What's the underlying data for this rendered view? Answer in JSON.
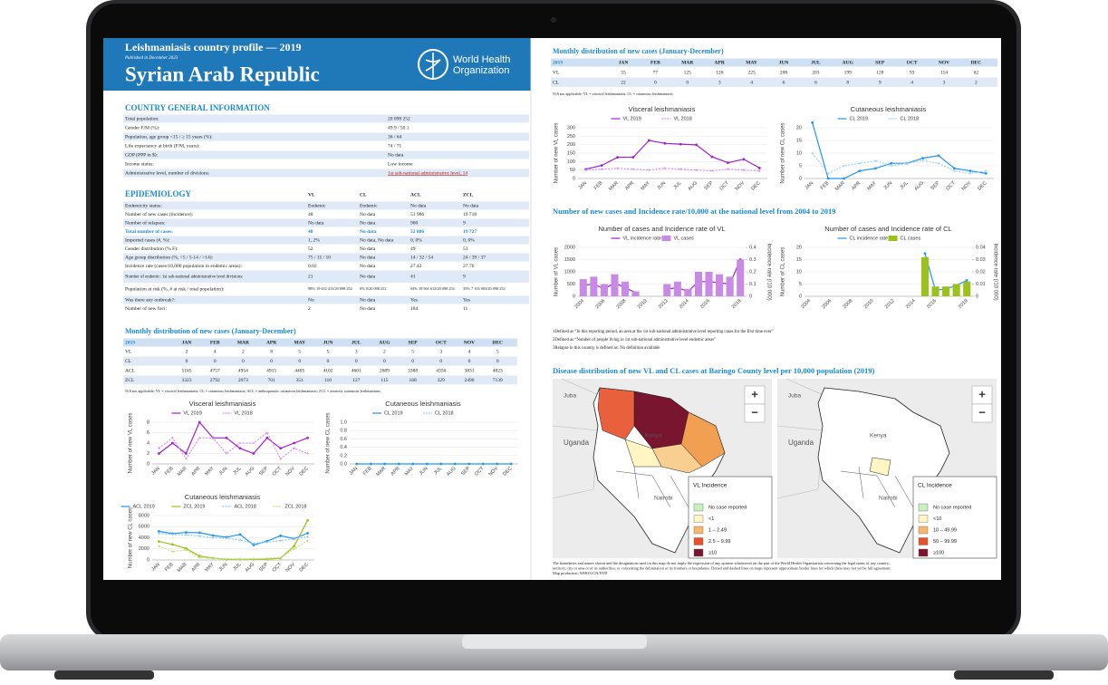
{
  "header": {
    "title": "Leishmaniasis country profile —  2019",
    "published": "Published in December 2023",
    "country": "Syrian Arab Republic",
    "org": [
      "World Health",
      "Organization"
    ]
  },
  "general": {
    "heading": "COUNTRY GENERAL INFORMATION",
    "rows": [
      [
        "Total population:",
        "20 098 252"
      ],
      [
        "Gender F/M (%):",
        "49.9 / 50.1"
      ],
      [
        "Population, age group <15 / ≥ 15 years (%):",
        "36 / 64"
      ],
      [
        "Life expectancy at birth (F/M, years):",
        "74 / 71"
      ],
      [
        "GDP (PPP in $):",
        "No data"
      ],
      [
        "Income status:",
        "Low income"
      ],
      [
        "Administrative level, number of divisions:",
        "1st sub-national administrative level, 14"
      ]
    ]
  },
  "epidemiology": {
    "heading": "EPIDEMIOLOGY",
    "columns": [
      "VL",
      "CL",
      "ACL",
      "ZCL"
    ],
    "rows": [
      [
        "Endemicity status:",
        "Endemic",
        "Endemic",
        "No data",
        "No data"
      ],
      [
        "Number of new cases (incidence):",
        "48",
        "No data",
        "51 986",
        "19 718"
      ],
      [
        "Number of relapses:",
        "No data",
        "No data",
        "900",
        "9"
      ],
      [
        "Total number of cases:",
        "48",
        "No data",
        "52 886",
        "19 727"
      ],
      [
        "Imported cases (#, %):",
        "1, 2%",
        "No data, No data",
        "0, 0%",
        "0, 0%"
      ],
      [
        "Gender distribution (% F):",
        "52",
        "No data",
        "49",
        "53"
      ],
      [
        "Age group distribution (%, <5 / 5-14 / >14):",
        "75 / 15 / 10",
        "No data",
        "14 / 32 / 54",
        "24 / 39 / 37"
      ],
      [
        "Incidence rate (cases/10,000 population in endemic areas):",
        "0.02",
        "No data",
        "27.42",
        "27.76"
      ],
      [
        "Number of endemic: 1st sub-national administrative level divisions:",
        "21",
        "No data",
        "41",
        "9"
      ],
      [
        "Population at risk (%, # at risk / total population):",
        "98% 19 652 413/20 098 252",
        "0% 0/20 098 252",
        "94% 18 961 612/20 098 252",
        "35% 7 103 903/20 098 252"
      ],
      [
        "Was there any outbreak?:",
        "No",
        "No data",
        "Yes",
        "Yes"
      ],
      [
        "Number of new foci:",
        "2",
        "No data",
        "184",
        "11"
      ]
    ]
  },
  "monthly_left": {
    "heading": "Monthly distribution of new cases (January-December)",
    "year": "2019",
    "months": [
      "JAN",
      "FEB",
      "MAR",
      "APR",
      "MAY",
      "JUN",
      "JUL",
      "AUG",
      "SEP",
      "OCT",
      "NOV",
      "DEC"
    ],
    "rows": [
      [
        "VL",
        2,
        4,
        2,
        8,
        5,
        5,
        3,
        2,
        5,
        3,
        4,
        5
      ],
      [
        "CL",
        0,
        0,
        0,
        0,
        0,
        0,
        0,
        0,
        0,
        0,
        0,
        0
      ],
      [
        "ACL",
        5165,
        4757,
        4954,
        4915,
        4405,
        4102,
        4601,
        2689,
        3388,
        4356,
        3831,
        4823
      ],
      [
        "ZCL",
        3323,
        2792,
        2073,
        701,
        351,
        110,
        127,
        115,
        168,
        329,
        2490,
        7139
      ]
    ],
    "note": "N/A not applicable; VL = visceral leishmaniasis; CL = cutaneous leishmaniasis; ACL = anthroponotic cutaneous leishmaniasis; ZCL = zoonotic cutaneous leishmaniasis"
  },
  "monthly_right": {
    "heading": "Monthly distribution of new cases (January-December)",
    "year": "2019",
    "months": [
      "JAN",
      "FEB",
      "MAR",
      "APR",
      "MAY",
      "JUN",
      "JUL",
      "AUG",
      "SEP",
      "OCT",
      "NOV",
      "DEC"
    ],
    "rows": [
      [
        "VL",
        55,
        77,
        125,
        126,
        225,
        208,
        203,
        199,
        128,
        93,
        114,
        62
      ],
      [
        "CL",
        22,
        0,
        0,
        3,
        4,
        6,
        6,
        8,
        9,
        4,
        3,
        2
      ]
    ],
    "note": "N/A not applicable; VL = visceral leishmaniasis; CL = cutaneous leishmaniasis"
  },
  "chart_data": [
    {
      "type": "line",
      "title": "Visceral leishmaniasis",
      "ylabel": "Number of new VL cases",
      "categories": [
        "JAN",
        "FEB",
        "MAR",
        "APR",
        "MAY",
        "JUN",
        "JUL",
        "AUG",
        "SEP",
        "OCT",
        "NOV",
        "DEC"
      ],
      "ylim": [
        0,
        8
      ],
      "yticks": [
        0,
        2,
        4,
        6,
        8
      ],
      "grid": true,
      "series": [
        {
          "name": "VL 2019",
          "color": "#a020d0",
          "values": [
            2,
            4,
            2,
            8,
            5,
            5,
            3,
            2,
            5,
            3,
            4,
            5
          ]
        },
        {
          "name": "VL 2018",
          "color": "#d890f0",
          "dashed": true,
          "values": [
            3,
            5,
            1,
            5,
            5,
            2,
            4,
            4,
            6,
            1,
            3,
            2
          ]
        }
      ]
    },
    {
      "type": "line",
      "title": "Cutaneous leishmaniasis",
      "ylabel": "Number of new CL cases",
      "categories": [
        "JAN",
        "FEB",
        "MAR",
        "APR",
        "MAY",
        "JUN",
        "JUL",
        "AUG",
        "SEP",
        "OCT",
        "NOV",
        "DEC"
      ],
      "ylim": [
        0,
        1
      ],
      "yticks": [
        {
          "value": 0,
          "label": "0.0"
        },
        {
          "value": 0.2,
          "label": "0.2"
        },
        {
          "value": 0.4,
          "label": "0.4"
        },
        {
          "value": 0.6,
          "label": "0.6"
        },
        {
          "value": 0.8,
          "label": "0.8"
        },
        {
          "value": 1,
          "label": "1.0"
        }
      ],
      "grid": true,
      "series": [
        {
          "name": "CL 2019",
          "color": "#2196f3",
          "values": [
            0,
            0,
            0,
            0,
            0,
            0,
            0,
            0,
            0,
            0,
            0,
            0
          ]
        },
        {
          "name": "CL 2018",
          "color": "#9fd3f8",
          "dashed": true,
          "values": [
            null,
            null,
            null,
            null,
            null,
            null,
            null,
            null,
            null,
            null,
            null,
            null
          ]
        }
      ]
    },
    {
      "type": "line",
      "title": "Cutaneous leishmaniasis",
      "ylabel": "Number of new CL cases",
      "categories": [
        "JAN",
        "FEB",
        "MAR",
        "APR",
        "MAY",
        "JUN",
        "JUL",
        "AUG",
        "SEP",
        "OCT",
        "NOV",
        "DEC"
      ],
      "ylim": [
        0,
        8000
      ],
      "yticks": [
        0,
        2000,
        4000,
        6000,
        8000
      ],
      "grid": true,
      "series": [
        {
          "name": "ACL 2019",
          "color": "#2196f3",
          "values": [
            5165,
            4757,
            4954,
            4915,
            4405,
            4102,
            4601,
            2689,
            3388,
            4356,
            3831,
            4823
          ]
        },
        {
          "name": "ZCL 2019",
          "color": "#9ac21a",
          "values": [
            3323,
            2792,
            2073,
            701,
            351,
            110,
            127,
            115,
            168,
            329,
            2490,
            7139
          ]
        },
        {
          "name": "ACL 2018",
          "color": "#8cc8f5",
          "dashed": true,
          "values": [
            4800,
            4600,
            4500,
            4300,
            4000,
            3900,
            3600,
            3000,
            3200,
            3500,
            3800,
            4200
          ]
        },
        {
          "name": "ZCL 2018",
          "color": "#c8e080",
          "dashed": true,
          "values": [
            2500,
            1500,
            1800,
            400,
            300,
            200,
            150,
            200,
            300,
            400,
            2000,
            3500
          ]
        }
      ]
    },
    {
      "type": "line",
      "title": "Visceral leishmaniasis",
      "ylabel": "Number of new VL cases",
      "categories": [
        "JAN",
        "FEB",
        "MAR",
        "APR",
        "MAY",
        "JUN",
        "JUL",
        "AUG",
        "SEP",
        "OCT",
        "NOV",
        "DEC"
      ],
      "ylim": [
        0,
        300
      ],
      "yticks": [
        0,
        50,
        100,
        150,
        200,
        250,
        300
      ],
      "grid": true,
      "series": [
        {
          "name": "VL 2019",
          "color": "#a020d0",
          "values": [
            55,
            77,
            125,
            126,
            225,
            208,
            203,
            199,
            128,
            93,
            114,
            62
          ]
        },
        {
          "name": "VL 2018",
          "color": "#d890f0",
          "dashed": true,
          "values": [
            50,
            55,
            60,
            55,
            50,
            60,
            55,
            50,
            45,
            55,
            50,
            45
          ]
        }
      ]
    },
    {
      "type": "line",
      "title": "Cutaneous leishmaniasis",
      "ylabel": "Number of new CL cases",
      "categories": [
        "JAN",
        "FEB",
        "MAR",
        "APR",
        "MAY",
        "JUN",
        "JUL",
        "AUG",
        "SEP",
        "OCT",
        "NOV",
        "DEC"
      ],
      "ylim": [
        0,
        20
      ],
      "yticks": [
        0,
        5,
        10,
        15,
        20
      ],
      "grid": true,
      "series": [
        {
          "name": "CL 2019",
          "color": "#2196f3",
          "values": [
            22,
            0,
            0,
            3,
            4,
            6,
            6,
            8,
            9,
            4,
            3,
            2
          ]
        },
        {
          "name": "CL 2018",
          "color": "#9fd3f8",
          "dashed": true,
          "values": [
            10,
            2,
            5,
            6,
            7,
            5,
            6,
            7,
            6,
            3,
            2,
            3
          ]
        }
      ]
    },
    {
      "type": "combo",
      "title": "Number of cases and Incidence rate of VL",
      "ylabel": "Number of VL cases",
      "y2label": "Incidence rate (/10 000)",
      "categories": [
        2004,
        null,
        2006,
        null,
        2008,
        null,
        2010,
        null,
        2012,
        null,
        2014,
        null,
        2016,
        null,
        null,
        2019
      ],
      "ylim": [
        0,
        2000
      ],
      "yticks": [
        0,
        500,
        1000,
        1500,
        2000
      ],
      "y2lim": [
        0,
        0.4
      ],
      "y2ticks": [
        0,
        0.1,
        0.2,
        0.3,
        0.4
      ],
      "grid": true,
      "series": [
        {
          "name": "VL incidence rate",
          "kind": "line",
          "axis": "y2",
          "color": "#a020d0",
          "values": [
            0.09,
            0.1,
            0.06,
            0.11,
            0.07,
            0.03,
            null,
            null,
            0.06,
            0.07,
            0.04,
            0.12,
            0.12,
            0.11,
            0.1,
            0.3
          ]
        },
        {
          "name": "VL cases",
          "kind": "bar",
          "color": "#c98ae6",
          "values": [
            700,
            800,
            500,
            900,
            600,
            200,
            null,
            null,
            500,
            600,
            300,
            1000,
            1000,
            900,
            800,
            1500
          ]
        }
      ]
    },
    {
      "type": "combo",
      "title": "Number of cases and Incidence rate of CL",
      "ylabel": "Number of CL cases",
      "y2label": "Incidence rate (/10 000)",
      "categories": [
        2004,
        null,
        2006,
        null,
        2008,
        null,
        2010,
        null,
        2012,
        null,
        2014,
        null,
        2016,
        null,
        null,
        2019
      ],
      "ylim": [
        0,
        20
      ],
      "yticks": [
        0,
        5,
        10,
        15,
        20
      ],
      "y2lim": [
        0,
        0.04
      ],
      "y2ticks": [
        0,
        0.01,
        0.02,
        0.03,
        0.04
      ],
      "grid": true,
      "series": [
        {
          "name": "CL incidence rate",
          "kind": "line",
          "axis": "y2",
          "color": "#2196f3",
          "values": [
            null,
            null,
            null,
            null,
            null,
            null,
            null,
            null,
            null,
            null,
            null,
            0.035,
            0.005,
            0.006,
            0.009,
            0.013
          ]
        },
        {
          "name": "CL cases",
          "kind": "bar",
          "color": "#9ac21a",
          "values": [
            null,
            null,
            null,
            null,
            null,
            null,
            null,
            null,
            null,
            null,
            null,
            16,
            4,
            4,
            5,
            6
          ]
        }
      ]
    }
  ],
  "section2": {
    "heading": "Number of new cases and Incidence rate/10,000 at the national level from 2004 to 2019"
  },
  "footnotes": [
    "1Defined as “In this reporting period, an area at the 1st sub-national administrative level reporting cases for the first time ever”",
    "2Defined as “Number of people living in 1st sub-national administrative level endemic areas”",
    "3Relapse in this country is defined as: No definition available"
  ],
  "maps": {
    "heading": "Disease distribution of new VL and CL cases at Baringo County level per 10,000 population (2019)",
    "zoom": [
      "+",
      "−"
    ],
    "places": [
      "Juba",
      "Uganda",
      "Kenya",
      "Nairobi"
    ],
    "legends": [
      {
        "title": "VL Incidence",
        "items": [
          [
            "No case reported",
            "#c8f0c0"
          ],
          [
            "<1",
            "#fff6c4"
          ],
          [
            "1 – 2.49",
            "#f5b870"
          ],
          [
            "2.5 – 9.99",
            "#e8502a"
          ],
          [
            "≥10",
            "#7a1530"
          ]
        ]
      },
      {
        "title": "CL Incidence",
        "items": [
          [
            "No case reported",
            "#c8f0c0"
          ],
          [
            "<10",
            "#fff6c4"
          ],
          [
            "10 – 49.99",
            "#f5b870"
          ],
          [
            "50 – 99.99",
            "#e8502a"
          ],
          [
            "≥100",
            "#7a1530"
          ]
        ]
      }
    ],
    "disclaimer": [
      "The boundaries and names shown and the designations used on this map do not imply the expression of any opinion whatsoever on the part of the World Health Organization concerning the legal status of any country,",
      "territory, city or area or of its authorities, or concerning the delimitation of its frontiers or boundaries. Dotted and dashed lines on maps represent approximate border lines for which there may not yet be full agreement.",
      "Map production: WHO/UCN/NTD"
    ]
  }
}
